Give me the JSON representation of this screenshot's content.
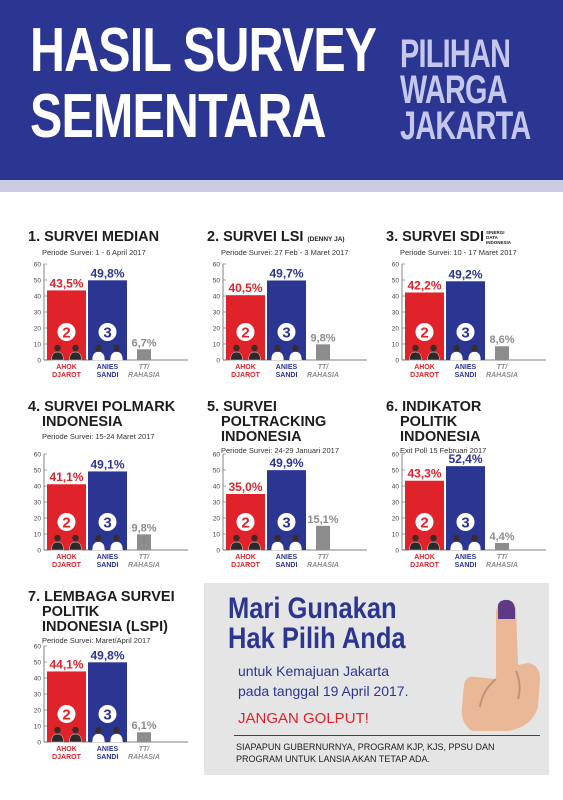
{
  "header": {
    "title_line1": "HASIL SURVEY",
    "title_line2": "SEMENTARA",
    "tag_line1": "PILIHAN",
    "tag_line2": "WARGA",
    "tag_line3": "JAKARTA"
  },
  "colors": {
    "header": "#2b3592",
    "ahok": "#e0232a",
    "anies": "#2b3592",
    "tt": "#8c8c8c"
  },
  "candidates": {
    "ahok": {
      "number": "2",
      "label1": "AHOK",
      "label2": "DJAROT"
    },
    "anies": {
      "number": "3",
      "label1": "ANIES",
      "label2": "SANDI"
    },
    "tt": {
      "label1": "TT/",
      "label2": "RAHASIA"
    }
  },
  "chart_data": [
    {
      "type": "bar",
      "title": "1. SURVEI MEDIAN",
      "period": "Periode Survei: 1 - 6 April 2017",
      "categories": [
        "AHOK DJAROT",
        "ANIES SANDI",
        "TT/ RAHASIA"
      ],
      "values": [
        43.5,
        49.8,
        6.7
      ],
      "labels": [
        "43,5%",
        "49,8%",
        "6,7%"
      ],
      "yticks": [
        "0",
        "10",
        "20",
        "30",
        "40",
        "50",
        "60"
      ],
      "ylim": [
        0,
        60
      ]
    },
    {
      "type": "bar",
      "title": "2. SURVEI LSI",
      "title_suffix": "(DENNY JA)",
      "period": "Periode Survei: 27 Feb - 3 Maret 2017",
      "categories": [
        "AHOK DJAROT",
        "ANIES SANDI",
        "TT/ RAHASIA"
      ],
      "values": [
        40.5,
        49.7,
        9.8
      ],
      "labels": [
        "40,5%",
        "49,7%",
        "9,8%"
      ],
      "yticks": [
        "0",
        "10",
        "20",
        "30",
        "40",
        "50",
        "60"
      ],
      "ylim": [
        0,
        60
      ]
    },
    {
      "type": "bar",
      "title": "3. SURVEI SDI",
      "title_tiny": "SINERGI DATA INDONESIA",
      "period": "Periode Survei: 10 - 17 Maret 2017",
      "categories": [
        "AHOK DJAROT",
        "ANIES SANDI",
        "TT/ RAHASIA"
      ],
      "values": [
        42.2,
        49.2,
        8.6
      ],
      "labels": [
        "42,2%",
        "49,2%",
        "8,6%"
      ],
      "yticks": [
        "0",
        "10",
        "20",
        "30",
        "40",
        "50",
        "60"
      ],
      "ylim": [
        0,
        60
      ]
    },
    {
      "type": "bar",
      "title": "4. SURVEI POLMARK",
      "title2": "INDONESIA",
      "period": "Periode Survei: 15-24 Maret 2017",
      "categories": [
        "AHOK DJAROT",
        "ANIES SANDI",
        "TT/ RAHASIA"
      ],
      "values": [
        41.1,
        49.1,
        9.8
      ],
      "labels": [
        "41,1%",
        "49,1%",
        "9,8%"
      ],
      "yticks": [
        "0",
        "10",
        "20",
        "30",
        "40",
        "50",
        "60"
      ],
      "ylim": [
        0,
        60
      ]
    },
    {
      "type": "bar",
      "title": "5. SURVEI",
      "title2": "POLTRACKING",
      "title3": "INDONESIA",
      "period": "Periode Survei: 24-29 Januari 2017",
      "categories": [
        "AHOK DJAROT",
        "ANIES SANDI",
        "TT/ RAHASIA"
      ],
      "values": [
        35.0,
        49.9,
        15.1
      ],
      "labels": [
        "35,0%",
        "49,9%",
        "15,1%"
      ],
      "yticks": [
        "0",
        "10",
        "20",
        "30",
        "40",
        "50",
        "60"
      ],
      "ylim": [
        0,
        60
      ]
    },
    {
      "type": "bar",
      "title": "6. INDIKATOR",
      "title2": "POLITIK",
      "title3": "INDONESIA",
      "period": "Exit Poll 15 Februari 2017",
      "categories": [
        "AHOK DJAROT",
        "ANIES SANDI",
        "TT/ RAHASIA"
      ],
      "values": [
        43.3,
        52.4,
        4.4
      ],
      "labels": [
        "43,3%",
        "52,4%",
        "4,4%"
      ],
      "yticks": [
        "0",
        "10",
        "20",
        "30",
        "40",
        "50",
        "60"
      ],
      "ylim": [
        0,
        60
      ]
    },
    {
      "type": "bar",
      "title": "7. LEMBAGA SURVEI",
      "title2": "POLITIK",
      "title3": "INDONESIA (LSPI)",
      "period": "Periode Survei: Maret/April 2017",
      "categories": [
        "AHOK DJAROT",
        "ANIES SANDI",
        "TT/ RAHASIA"
      ],
      "values": [
        44.1,
        49.8,
        6.1
      ],
      "labels": [
        "44,1%",
        "49,8%",
        "6,1%"
      ],
      "yticks": [
        "0",
        "10",
        "20",
        "30",
        "40",
        "50",
        "60"
      ],
      "ylim": [
        0,
        60
      ]
    }
  ],
  "ad": {
    "headline1": "Mari Gunakan",
    "headline2": "Hak Pilih Anda",
    "line1": "untuk Kemajuan Jakarta",
    "line2": "pada tanggal 19 April 2017.",
    "warning": "JANGAN GOLPUT!",
    "note1": "SIAPAPUN GUBERNURNYA, PROGRAM KJP, KJS, PPSU DAN",
    "note2": "PROGRAM UNTUK LANSIA AKAN TETAP ADA.",
    "hand_icon": "voting-finger-icon"
  }
}
